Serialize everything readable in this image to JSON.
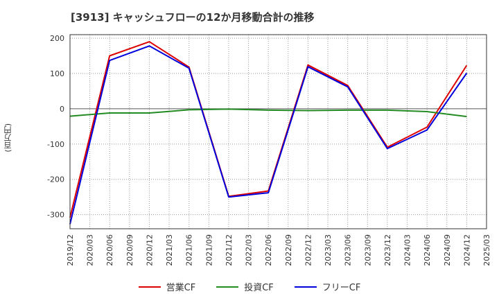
{
  "chart_data": {
    "type": "line",
    "title": "[3913]  キャッシュフローの12か月移動合計の推移",
    "ylabel": "(百万円)",
    "xlabel": "",
    "ylim": [
      -340,
      210
    ],
    "yticks": [
      200,
      100,
      0,
      -100,
      -200,
      -300
    ],
    "x_ticks": [
      "2019/12",
      "2020/03",
      "2020/06",
      "2020/09",
      "2020/12",
      "2021/03",
      "2021/06",
      "2021/09",
      "2021/12",
      "2022/03",
      "2022/06",
      "2022/09",
      "2022/12",
      "2023/03",
      "2023/06",
      "2023/09",
      "2023/12",
      "2024/03",
      "2024/06",
      "2024/09",
      "2024/12",
      "2025/03"
    ],
    "legend_position": "bottom",
    "series": [
      {
        "name": "営業CF",
        "color": "#dd0000",
        "points": [
          {
            "x": "2019/12",
            "y": -308
          },
          {
            "x": "2020/06",
            "y": 150
          },
          {
            "x": "2020/12",
            "y": 190
          },
          {
            "x": "2021/06",
            "y": 118
          },
          {
            "x": "2021/12",
            "y": -248
          },
          {
            "x": "2022/06",
            "y": -233
          },
          {
            "x": "2022/12",
            "y": 124
          },
          {
            "x": "2023/06",
            "y": 66
          },
          {
            "x": "2023/12",
            "y": -109
          },
          {
            "x": "2024/06",
            "y": -52
          },
          {
            "x": "2024/12",
            "y": 123
          }
        ]
      },
      {
        "name": "投資CF",
        "color": "#228b22",
        "points": [
          {
            "x": "2019/12",
            "y": -21
          },
          {
            "x": "2020/06",
            "y": -12
          },
          {
            "x": "2020/12",
            "y": -12
          },
          {
            "x": "2021/06",
            "y": -3
          },
          {
            "x": "2021/12",
            "y": -1
          },
          {
            "x": "2022/06",
            "y": -4
          },
          {
            "x": "2022/12",
            "y": -5
          },
          {
            "x": "2023/06",
            "y": -4
          },
          {
            "x": "2023/12",
            "y": -4
          },
          {
            "x": "2024/06",
            "y": -8
          },
          {
            "x": "2024/12",
            "y": -22
          }
        ]
      },
      {
        "name": "フリーCF",
        "color": "#0000dd",
        "points": [
          {
            "x": "2019/12",
            "y": -327
          },
          {
            "x": "2020/06",
            "y": 137
          },
          {
            "x": "2020/12",
            "y": 178
          },
          {
            "x": "2021/06",
            "y": 115
          },
          {
            "x": "2021/12",
            "y": -250
          },
          {
            "x": "2022/06",
            "y": -238
          },
          {
            "x": "2022/12",
            "y": 119
          },
          {
            "x": "2023/06",
            "y": 62
          },
          {
            "x": "2023/12",
            "y": -113
          },
          {
            "x": "2024/06",
            "y": -60
          },
          {
            "x": "2024/12",
            "y": 101
          }
        ]
      }
    ]
  }
}
